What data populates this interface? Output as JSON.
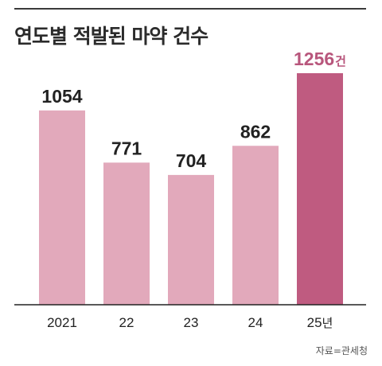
{
  "title": "연도별 적발된 마약 건수",
  "source": "자료=관세청",
  "colors": {
    "bar": "#e2a9bb",
    "highlight": "#bf5b80",
    "highlight_text": "#b8567c",
    "axis": "#222222",
    "text": "#222222"
  },
  "chart_data": {
    "type": "bar",
    "title": "연도별 적발된 마약 건수",
    "categories": [
      "2021",
      "22",
      "23",
      "24",
      "25년"
    ],
    "values": [
      1054,
      771,
      704,
      862,
      1256
    ],
    "value_labels": [
      "1054",
      "771",
      "704",
      "862",
      "1256건"
    ],
    "highlight_index": 4,
    "xlabel": "",
    "ylabel": "",
    "ylim": [
      0,
      1300
    ],
    "grid": false,
    "legend": "none"
  }
}
